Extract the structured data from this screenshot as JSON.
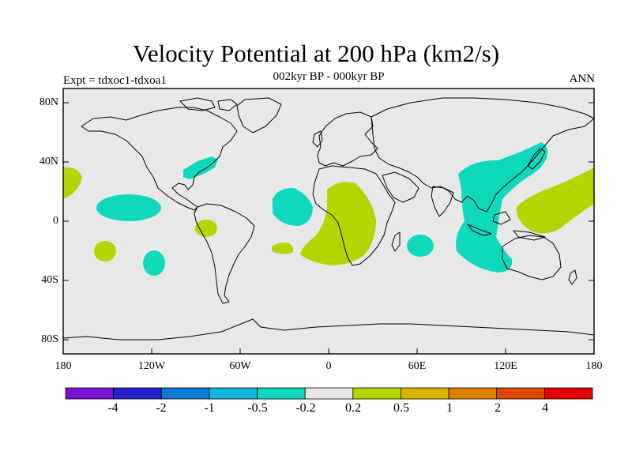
{
  "title": "Velocity Potential at 200 hPa (km2/s)",
  "subtitle": "002kyr BP - 000kyr BP",
  "left_label": "Expt = tdxoc1-tdxoa1",
  "right_label": "ANN",
  "lat_labels": [
    "80N",
    "40N",
    "0",
    "40S",
    "80S"
  ],
  "lon_labels": [
    "180",
    "120W",
    "60W",
    "0",
    "60E",
    "120E",
    "180"
  ],
  "colorbar": {
    "colors": [
      "#7a12d6",
      "#2222cc",
      "#0d7ad4",
      "#12b6e0",
      "#0fd9bd",
      "#e8e8e8",
      "#b4d600",
      "#d8b400",
      "#e08000",
      "#e04800",
      "#e40000"
    ],
    "labels": [
      "-4",
      "-2",
      "-1",
      "-0.5",
      "-0.2",
      "0.2",
      "0.5",
      "1",
      "2",
      "4"
    ]
  },
  "map": {
    "ocean_color": "#e8e8e8",
    "negative_color": "#0fd9bd",
    "positive_color": "#b4d600"
  }
}
